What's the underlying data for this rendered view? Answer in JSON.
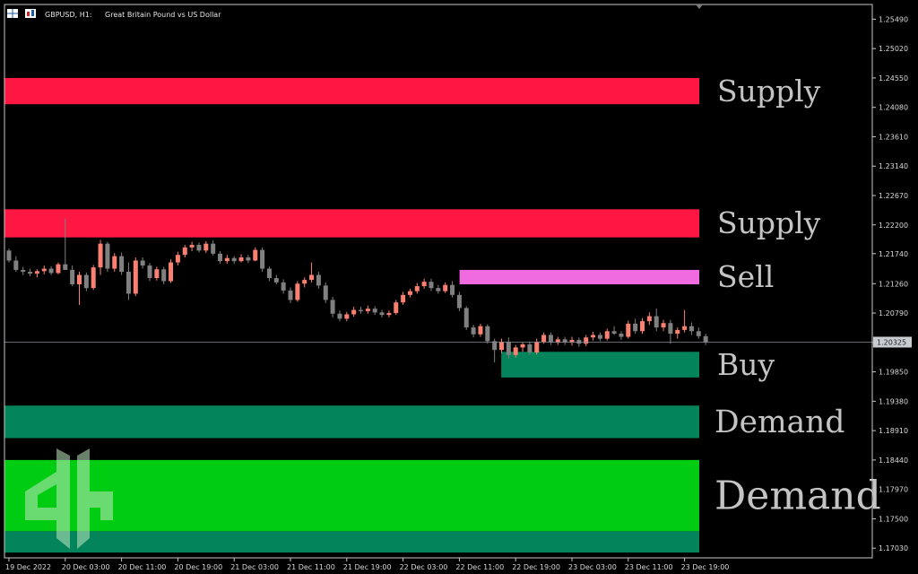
{
  "header": {
    "symbol_text": "GBPUSD, H1:",
    "description": "Great Britain Pound vs US Dollar"
  },
  "colors": {
    "background": "#000000",
    "axis": "#c8c8c8",
    "bull": "#fa8072",
    "bear": "#808080",
    "supply": "#ff1744",
    "sell": "#f06be0",
    "buy": "#04845a",
    "demand": "#04845a",
    "demand_strong": "#00cc11",
    "label": "#c4c4c4"
  },
  "chart_data": {
    "type": "candlestick",
    "title": "",
    "ylim": [
      1.16875,
      1.25725
    ],
    "y_ticks": [
      "1.25490",
      "1.25020",
      "1.24550",
      "1.24080",
      "1.23610",
      "1.23140",
      "1.22670",
      "1.22200",
      "1.21740",
      "1.21260",
      "1.20790",
      "1.20320",
      "1.19850",
      "1.19380",
      "1.18910",
      "1.18440",
      "1.17970",
      "1.17500",
      "1.17030"
    ],
    "current_price": "1.20325",
    "time_labels": [
      "19 Dec 2022",
      "20 Dec 03:00",
      "20 Dec 11:00",
      "20 Dec 19:00",
      "21 Dec 03:00",
      "21 Dec 11:00",
      "21 Dec 19:00",
      "22 Dec 03:00",
      "22 Dec 11:00",
      "22 Dec 19:00",
      "23 Dec 03:00",
      "23 Dec 11:00",
      "23 Dec 19:00"
    ],
    "zones": [
      {
        "label": "Supply",
        "type": "supply",
        "top": 1.2455,
        "bottom": 1.2413,
        "start": 0
      },
      {
        "label": "Supply",
        "type": "supply",
        "top": 1.2245,
        "bottom": 1.22,
        "start": 0
      },
      {
        "label": "Sell",
        "type": "sell",
        "top": 1.2148,
        "bottom": 1.2125,
        "start": 0.655
      },
      {
        "label": "Buy",
        "type": "buy",
        "top": 1.2017,
        "bottom": 1.1976,
        "start": 0.715
      },
      {
        "label": "Demand",
        "type": "demand",
        "top": 1.1931,
        "bottom": 1.1879,
        "start": 0
      },
      {
        "label": "Demand",
        "type": "demand_strong",
        "top": 1.1844,
        "bottom": 1.173,
        "start": 0
      },
      {
        "label": "",
        "type": "demand",
        "top": 1.173,
        "bottom": 1.1696,
        "start": 0
      }
    ],
    "candles": [
      [
        1.2179,
        1.2182,
        1.216,
        1.2163
      ],
      [
        1.2163,
        1.217,
        1.2145,
        1.2148
      ],
      [
        1.2148,
        1.2153,
        1.214,
        1.2145
      ],
      [
        1.2145,
        1.215,
        1.2138,
        1.2142
      ],
      [
        1.2142,
        1.2149,
        1.2136,
        1.2146
      ],
      [
        1.2146,
        1.2155,
        1.2141,
        1.215
      ],
      [
        1.215,
        1.2154,
        1.214,
        1.2143
      ],
      [
        1.2143,
        1.216,
        1.2141,
        1.2157
      ],
      [
        1.2157,
        1.223,
        1.215,
        1.2148
      ],
      [
        1.2148,
        1.2155,
        1.2122,
        1.2125
      ],
      [
        1.2125,
        1.2145,
        1.2092,
        1.214
      ],
      [
        1.214,
        1.2144,
        1.2114,
        1.2119
      ],
      [
        1.2119,
        1.2156,
        1.2116,
        1.2152
      ],
      [
        1.2152,
        1.2196,
        1.214,
        1.219
      ],
      [
        1.219,
        1.2193,
        1.2145,
        1.215
      ],
      [
        1.215,
        1.2175,
        1.2145,
        1.217
      ],
      [
        1.217,
        1.2176,
        1.214,
        1.2145
      ],
      [
        1.2145,
        1.216,
        1.21,
        1.211
      ],
      [
        1.211,
        1.2168,
        1.2106,
        1.2163
      ],
      [
        1.2163,
        1.2168,
        1.215,
        1.2155
      ],
      [
        1.2155,
        1.2159,
        1.213,
        1.2135
      ],
      [
        1.2135,
        1.2153,
        1.2131,
        1.2149
      ],
      [
        1.2149,
        1.2153,
        1.2125,
        1.213
      ],
      [
        1.213,
        1.2165,
        1.2127,
        1.216
      ],
      [
        1.216,
        1.2177,
        1.2155,
        1.2172
      ],
      [
        1.2172,
        1.2188,
        1.2168,
        1.2184
      ],
      [
        1.2184,
        1.2193,
        1.2178,
        1.2188
      ],
      [
        1.2188,
        1.2192,
        1.2176,
        1.2179
      ],
      [
        1.2179,
        1.2194,
        1.2175,
        1.219
      ],
      [
        1.219,
        1.2195,
        1.2171,
        1.2174
      ],
      [
        1.2174,
        1.2178,
        1.2158,
        1.2162
      ],
      [
        1.2162,
        1.2172,
        1.2158,
        1.2167
      ],
      [
        1.2167,
        1.217,
        1.2158,
        1.2162
      ],
      [
        1.2162,
        1.2173,
        1.216,
        1.2168
      ],
      [
        1.2168,
        1.2172,
        1.2159,
        1.2163
      ],
      [
        1.2163,
        1.2184,
        1.2162,
        1.218
      ],
      [
        1.218,
        1.2184,
        1.2145,
        1.215
      ],
      [
        1.215,
        1.2153,
        1.213,
        1.2135
      ],
      [
        1.2135,
        1.214,
        1.2125,
        1.2128
      ],
      [
        1.2128,
        1.2133,
        1.211,
        1.2115
      ],
      [
        1.2115,
        1.212,
        1.2095,
        1.21
      ],
      [
        1.21,
        1.213,
        1.2097,
        1.2126
      ],
      [
        1.2126,
        1.2136,
        1.212,
        1.2132
      ],
      [
        1.2132,
        1.216,
        1.2128,
        1.214
      ],
      [
        1.214,
        1.2145,
        1.2118,
        1.2123
      ],
      [
        1.2123,
        1.2128,
        1.2095,
        1.21
      ],
      [
        1.21,
        1.2105,
        1.2072,
        1.2078
      ],
      [
        1.2078,
        1.2083,
        1.2066,
        1.207
      ],
      [
        1.207,
        1.2081,
        1.2066,
        1.2077
      ],
      [
        1.2077,
        1.2089,
        1.2073,
        1.2084
      ],
      [
        1.2084,
        1.2089,
        1.2078,
        1.2082
      ],
      [
        1.2082,
        1.2091,
        1.2078,
        1.2086
      ],
      [
        1.2086,
        1.209,
        1.2076,
        1.208
      ],
      [
        1.208,
        1.2084,
        1.2072,
        1.2076
      ],
      [
        1.2076,
        1.2083,
        1.2072,
        1.2079
      ],
      [
        1.2079,
        1.21,
        1.2076,
        1.2096
      ],
      [
        1.2096,
        1.2113,
        1.2092,
        1.2108
      ],
      [
        1.2108,
        1.2118,
        1.2104,
        1.2114
      ],
      [
        1.2114,
        1.2127,
        1.211,
        1.2122
      ],
      [
        1.2122,
        1.2134,
        1.2118,
        1.2129
      ],
      [
        1.2129,
        1.2134,
        1.2114,
        1.2119
      ],
      [
        1.2119,
        1.2124,
        1.211,
        1.2114
      ],
      [
        1.2114,
        1.2128,
        1.2111,
        1.2124
      ],
      [
        1.2124,
        1.213,
        1.2104,
        1.2108
      ],
      [
        1.2108,
        1.2113,
        1.2082,
        1.2087
      ],
      [
        1.2087,
        1.209,
        1.2052,
        1.2056
      ],
      [
        1.2056,
        1.206,
        1.204,
        1.2045
      ],
      [
        1.2045,
        1.2062,
        1.2041,
        1.2058
      ],
      [
        1.2058,
        1.2061,
        1.203,
        1.2034
      ],
      [
        1.2034,
        1.2038,
        1.2,
        1.202
      ],
      [
        1.202,
        1.2038,
        1.2015,
        1.2033
      ],
      [
        1.2033,
        1.204,
        1.2006,
        1.2012
      ],
      [
        1.2012,
        1.2028,
        1.2008,
        1.2024
      ],
      [
        1.2024,
        1.2032,
        1.2017,
        1.2029
      ],
      [
        1.2029,
        1.2033,
        1.2012,
        1.2016
      ],
      [
        1.2016,
        1.2038,
        1.2013,
        1.2033
      ],
      [
        1.2033,
        1.2048,
        1.203,
        1.2044
      ],
      [
        1.2044,
        1.2048,
        1.2028,
        1.2032
      ],
      [
        1.2032,
        1.2041,
        1.2028,
        1.2037
      ],
      [
        1.2037,
        1.2041,
        1.2028,
        1.2032
      ],
      [
        1.2032,
        1.2041,
        1.2027,
        1.2036
      ],
      [
        1.2036,
        1.204,
        1.2025,
        1.203
      ],
      [
        1.203,
        1.2044,
        1.2026,
        1.204
      ],
      [
        1.204,
        1.2049,
        1.2035,
        1.2044
      ],
      [
        1.2044,
        1.2048,
        1.2034,
        1.2038
      ],
      [
        1.2038,
        1.2054,
        1.2035,
        1.205
      ],
      [
        1.205,
        1.2058,
        1.2044,
        1.2046
      ],
      [
        1.2046,
        1.205,
        1.2036,
        1.2041
      ],
      [
        1.2041,
        1.2067,
        1.2038,
        1.2062
      ],
      [
        1.2062,
        1.207,
        1.2046,
        1.205
      ],
      [
        1.205,
        1.2071,
        1.2046,
        1.2066
      ],
      [
        1.2066,
        1.208,
        1.206,
        1.2074
      ],
      [
        1.2074,
        1.2086,
        1.205,
        1.2056
      ],
      [
        1.2056,
        1.2068,
        1.205,
        1.2063
      ],
      [
        1.2063,
        1.2068,
        1.203,
        1.2046
      ],
      [
        1.2046,
        1.2056,
        1.2038,
        1.2052
      ],
      [
        1.2052,
        1.2084,
        1.2048,
        1.2058
      ],
      [
        1.2058,
        1.2064,
        1.2044,
        1.205
      ],
      [
        1.205,
        1.2056,
        1.2038,
        1.2042
      ],
      [
        1.2042,
        1.2046,
        1.2028,
        1.2032
      ]
    ]
  }
}
